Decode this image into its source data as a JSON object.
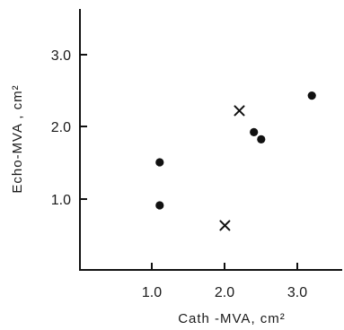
{
  "chart_data": {
    "type": "scatter",
    "xlabel": "Cath  -MVA,  cm²",
    "ylabel": "Echo-MVA ,  cm²",
    "xlim": [
      0,
      3.6
    ],
    "ylim": [
      0,
      3.6
    ],
    "x_ticks": [
      "1.0",
      "2.0",
      "3.0"
    ],
    "y_ticks": [
      "1.0",
      "2.0",
      "3.0"
    ],
    "x_tick_values": [
      1.0,
      2.0,
      3.0
    ],
    "y_tick_values": [
      1.0,
      2.0,
      3.0
    ],
    "grid": false,
    "series": [
      {
        "marker": "dot",
        "color": "#111111",
        "points": [
          {
            "x": 1.1,
            "y": 1.5
          },
          {
            "x": 1.1,
            "y": 0.9
          },
          {
            "x": 2.4,
            "y": 1.92
          },
          {
            "x": 2.5,
            "y": 1.82
          },
          {
            "x": 3.2,
            "y": 2.43
          }
        ]
      },
      {
        "marker": "cross",
        "color": "#111111",
        "points": [
          {
            "x": 2.2,
            "y": 2.22
          },
          {
            "x": 2.0,
            "y": 0.62
          }
        ]
      }
    ]
  }
}
